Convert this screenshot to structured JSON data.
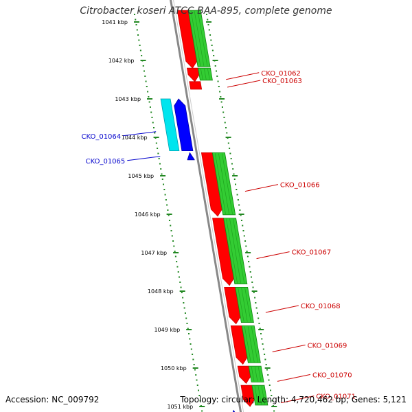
{
  "title": "Citrobacter koseri ATCC BAA-895, complete genome",
  "footer": {
    "accession": "Accession: NC_009792",
    "summary": "Topology: circular; Length: 4,720,462 bp; Genes: 5,121"
  },
  "colors": {
    "forward_gene": "#ff0000",
    "forward_gene_dark": "#cc0000",
    "forward_cds": "#33cc33",
    "forward_cds_dark": "#118811",
    "reverse_gene": "#0000ff",
    "reverse_gene_dark": "#0000aa",
    "reverse_cds": "#00e5ee",
    "reverse_cds_dark": "#00a0b0",
    "backbone": "#888888",
    "ticks": "#228822",
    "forward_label": "#cc0000",
    "reverse_label": "#0000cc"
  },
  "scale": {
    "unit": "kbp",
    "ticks": [
      {
        "kbp": 1041,
        "label": "1041 kbp"
      },
      {
        "kbp": 1042,
        "label": "1042 kbp"
      },
      {
        "kbp": 1043,
        "label": "1043 kbp"
      },
      {
        "kbp": 1044,
        "label": "1044 kbp"
      },
      {
        "kbp": 1045,
        "label": "1045 kbp"
      },
      {
        "kbp": 1046,
        "label": "1046 kbp"
      },
      {
        "kbp": 1047,
        "label": "1047 kbp"
      },
      {
        "kbp": 1048,
        "label": "1048 kbp"
      },
      {
        "kbp": 1049,
        "label": "1049 kbp"
      },
      {
        "kbp": 1050,
        "label": "1050 kbp"
      },
      {
        "kbp": 1051,
        "label": "1051 kbp"
      }
    ]
  },
  "genes": [
    {
      "name": "",
      "strand": "+",
      "start_kbp": 1040.7,
      "end_kbp": 1042.2
    },
    {
      "name": "CKO_01062",
      "strand": "+",
      "start_kbp": 1042.2,
      "end_kbp": 1042.55
    },
    {
      "name": "CKO_01063",
      "strand": "+",
      "start_kbp": 1042.55,
      "end_kbp": 1042.75
    },
    {
      "name": "CKO_01064",
      "strand": "-",
      "start_kbp": 1043.0,
      "end_kbp": 1044.35
    },
    {
      "name": "CKO_01065",
      "strand": "-",
      "start_kbp": 1044.4,
      "end_kbp": 1044.55
    },
    {
      "name": "CKO_01066",
      "strand": "+",
      "start_kbp": 1044.4,
      "end_kbp": 1046.05
    },
    {
      "name": "CKO_01067",
      "strand": "+",
      "start_kbp": 1046.1,
      "end_kbp": 1047.85
    },
    {
      "name": "CKO_01068",
      "strand": "+",
      "start_kbp": 1047.9,
      "end_kbp": 1048.85
    },
    {
      "name": "CKO_01069",
      "strand": "+",
      "start_kbp": 1048.9,
      "end_kbp": 1049.9
    },
    {
      "name": "CKO_01070",
      "strand": "+",
      "start_kbp": 1049.95,
      "end_kbp": 1050.4
    },
    {
      "name": "CKO_01071",
      "strand": "+",
      "start_kbp": 1050.45,
      "end_kbp": 1051.0
    },
    {
      "name": "",
      "strand": "-",
      "start_kbp": 1051.1,
      "end_kbp": 1051.3
    }
  ]
}
